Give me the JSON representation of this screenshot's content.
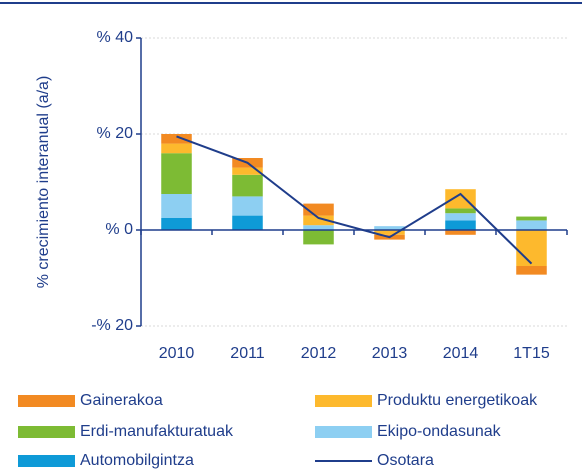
{
  "chart_data": {
    "type": "bar",
    "stacked": true,
    "y_label": "% crecimiento interanual  (a/a)",
    "categories": [
      "2010",
      "2011",
      "2012",
      "2013",
      "2014",
      "1T15"
    ],
    "ylim": [
      -20,
      40
    ],
    "yticks": [
      {
        "value": -20,
        "label": "-% 20"
      },
      {
        "value": 0,
        "label": "% 0"
      },
      {
        "value": 20,
        "label": "% 20"
      },
      {
        "value": 40,
        "label": "% 40"
      }
    ],
    "grid": true,
    "series": [
      {
        "name": "Gainerakoa",
        "color": "#f28a22",
        "values": [
          2,
          2,
          2.5,
          -1,
          -1,
          -1.8
        ]
      },
      {
        "name": "Produktu energetikoak",
        "color": "#fdb92d",
        "values": [
          2,
          1.5,
          2,
          -1,
          4,
          -7.5
        ]
      },
      {
        "name": "Erdi-manufakturatuak",
        "color": "#7dbb34",
        "values": [
          8.5,
          4.5,
          -3,
          0,
          1,
          0.8
        ]
      },
      {
        "name": "Ekipo-ondasunak",
        "color": "#8dcff2",
        "values": [
          5,
          4,
          1,
          0.8,
          1.5,
          2
        ]
      },
      {
        "name": "Automobilgintza",
        "color": "#0e9ad7",
        "values": [
          2.5,
          3,
          0,
          0,
          2,
          0
        ]
      }
    ],
    "line_series": {
      "name": "Osotara",
      "color": "#1f3d8b",
      "values": [
        19.5,
        14,
        2.5,
        -1.5,
        7.5,
        -7
      ]
    }
  }
}
